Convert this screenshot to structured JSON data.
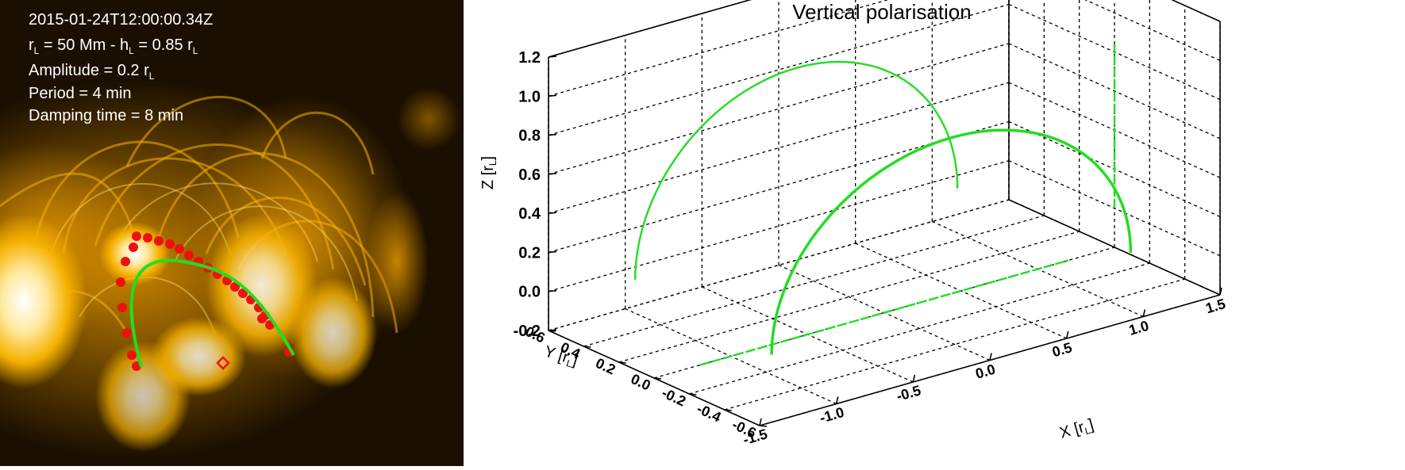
{
  "image_panel": {
    "timestamp": "2015-01-24T12:00:00.34Z",
    "params": {
      "r_symbol": "r",
      "r_sub": "L",
      "r_value": " = 50 Mm - h",
      "h_sub": "L",
      "h_value": " = 0.85 r",
      "h_unit_sub": "L",
      "amplitude_prefix": "Amplitude = 0.2 r",
      "amplitude_sub": "L",
      "period": "Period = 4 min",
      "damping": "Damping time = 8 min"
    },
    "colors": {
      "background": "#1a0f00",
      "plasma": "#f5b100",
      "bright": "#ffffff",
      "loop_fit": "#22dd22",
      "points": "#ee1111"
    }
  },
  "chart_data": {
    "type": "3d-line",
    "title": "Vertical polarisation",
    "zlabel": "Z [r",
    "zlabel_sub": "L",
    "zlabel_end": "]",
    "ylabel": "Y [r",
    "ylabel_sub": "L",
    "ylabel_end": "]",
    "xlabel": "X [r",
    "xlabel_sub": "L",
    "xlabel_end": "]",
    "z_ticks": [
      "-0.2",
      "0.0",
      "0.2",
      "0.4",
      "0.6",
      "0.8",
      "1.0",
      "1.2"
    ],
    "z_range": [
      -0.2,
      1.2
    ],
    "y_ticks": [
      "-0.6",
      "-0.4",
      "-0.2",
      "0.0",
      "0.2",
      "0.4",
      "0.6"
    ],
    "y_range": [
      -0.6,
      0.6
    ],
    "x_ticks": [
      "-1.5",
      "-1.0",
      "-0.5",
      "0.0",
      "0.5",
      "1.0",
      "1.5"
    ],
    "x_range": [
      -1.5,
      1.5
    ],
    "grid": true,
    "series_color": "#22dd22",
    "series": [
      {
        "kind": "front-arc",
        "x": [
          -1.17,
          1.17
        ],
        "y": [
          0.0,
          0.0
        ],
        "z_peak": 0.85
      },
      {
        "kind": "back-arc",
        "x": [
          -1.05,
          1.05
        ],
        "y": [
          0.0,
          0.0
        ],
        "z_peak": 0.85
      },
      {
        "kind": "floor-projection",
        "x": [
          -1.2,
          1.2
        ],
        "y": 0.0
      },
      {
        "kind": "side-wall-projection",
        "z": [
          0.0,
          0.85
        ]
      }
    ]
  }
}
